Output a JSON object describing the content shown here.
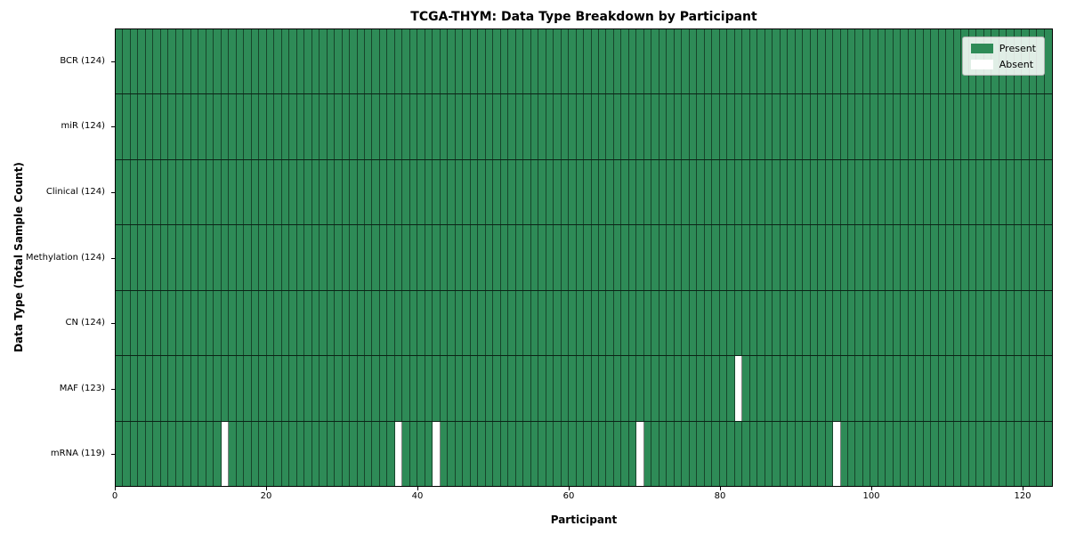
{
  "chart_data": {
    "type": "heatmap",
    "title": "TCGA-THYM: Data Type Breakdown by Participant",
    "xlabel": "Participant",
    "ylabel": "Data Type (Total Sample Count)",
    "xlim": [
      0,
      124
    ],
    "n_participants": 124,
    "x_ticks": [
      0,
      20,
      40,
      60,
      80,
      100,
      120
    ],
    "grid": false,
    "cell_states": [
      "Present",
      "Absent"
    ],
    "rows": [
      {
        "label": "BCR (124)",
        "data_type": "BCR",
        "present_count": 124,
        "absent_participants": []
      },
      {
        "label": "miR (124)",
        "data_type": "miR",
        "present_count": 124,
        "absent_participants": []
      },
      {
        "label": "Clinical (124)",
        "data_type": "Clinical",
        "present_count": 124,
        "absent_participants": []
      },
      {
        "label": "Methylation (124)",
        "data_type": "Methylation",
        "present_count": 124,
        "absent_participants": []
      },
      {
        "label": "CN (124)",
        "data_type": "CN",
        "present_count": 124,
        "absent_participants": []
      },
      {
        "label": "MAF (123)",
        "data_type": "MAF",
        "present_count": 123,
        "absent_participants": [
          82
        ]
      },
      {
        "label": "mRNA (119)",
        "data_type": "mRNA",
        "present_count": 119,
        "absent_participants": [
          14,
          37,
          42,
          69,
          95
        ]
      }
    ],
    "legend": {
      "position": "upper right",
      "entries": [
        {
          "label": "Present",
          "color": "#2e8b57"
        },
        {
          "label": "Absent",
          "color": "#ffffff"
        }
      ]
    }
  },
  "colors": {
    "present": "#2e8b57",
    "absent": "#ffffff",
    "cell_border": "rgba(0,0,0,0.5)",
    "row_border": "rgba(0,0,0,0.75)",
    "spine": "#000000",
    "legend_bg": "rgba(255,255,255,0.85)",
    "legend_border": "#b3b3b3"
  }
}
